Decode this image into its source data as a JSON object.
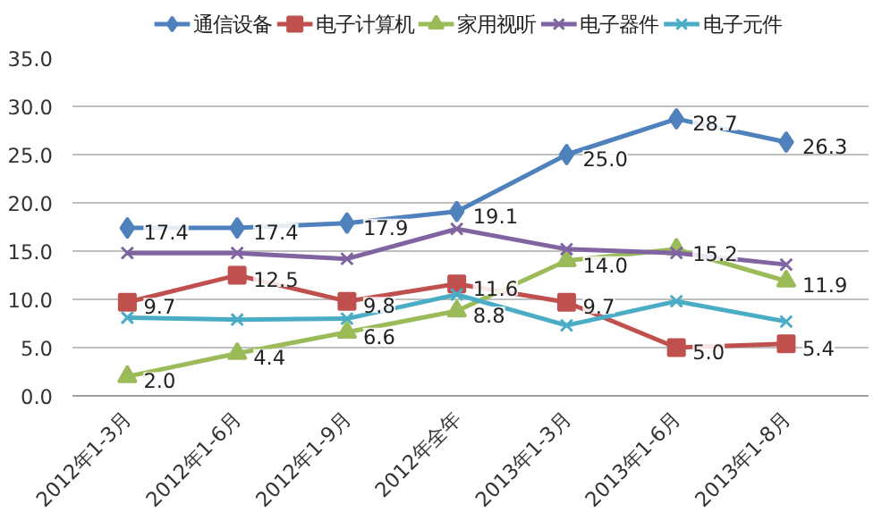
{
  "chart_data": {
    "type": "line",
    "categories": [
      "2012年1-3月",
      "2012年1-6月",
      "2012年1-9月",
      "2012年全年",
      "2013年1-3月",
      "2013年1-6月",
      "2013年1-8月"
    ],
    "series": [
      {
        "name": "通信设备",
        "color": "#4f81bd",
        "marker": "diamond",
        "values": [
          17.4,
          17.4,
          17.9,
          19.1,
          25.0,
          28.7,
          26.3
        ],
        "value_labels": [
          "17.4",
          "17.4",
          "17.9",
          "19.1",
          "25.0",
          "28.7",
          "26.3"
        ]
      },
      {
        "name": "电子计算机",
        "color": "#c0504d",
        "marker": "square",
        "values": [
          9.7,
          12.5,
          9.8,
          11.6,
          9.7,
          5.0,
          5.4
        ],
        "value_labels": [
          "9.7",
          "12.5",
          "9.8",
          "11.6",
          "9.7",
          "5.0",
          "5.4"
        ]
      },
      {
        "name": "家用视听",
        "color": "#9bbb59",
        "marker": "triangle",
        "values": [
          2.0,
          4.4,
          6.6,
          8.8,
          14.0,
          15.2,
          11.9
        ],
        "value_labels": [
          "2.0",
          "4.4",
          "6.6",
          "8.8",
          "14.0",
          "15.2",
          "11.9"
        ]
      },
      {
        "name": "电子器件",
        "color": "#8064a2",
        "marker": "cross",
        "values": [
          14.8,
          14.8,
          14.2,
          17.3,
          15.2,
          14.8,
          13.6
        ]
      },
      {
        "name": "电子元件",
        "color": "#4bacc6",
        "marker": "cross",
        "values": [
          8.1,
          7.9,
          8.0,
          10.5,
          7.3,
          9.8,
          7.7
        ]
      }
    ],
    "ylim": [
      0,
      35
    ],
    "yticks": [
      {
        "value": 0,
        "label": "0.0"
      },
      {
        "value": 5,
        "label": "5.0"
      },
      {
        "value": 10,
        "label": "10.0"
      },
      {
        "value": 15,
        "label": "15.0"
      },
      {
        "value": 20,
        "label": "20.0"
      },
      {
        "value": 25,
        "label": "25.0"
      },
      {
        "value": 30,
        "label": "30.0"
      },
      {
        "value": 35,
        "label": "35.0"
      }
    ],
    "grid": "y",
    "legend": "top",
    "line_style": "solid"
  }
}
